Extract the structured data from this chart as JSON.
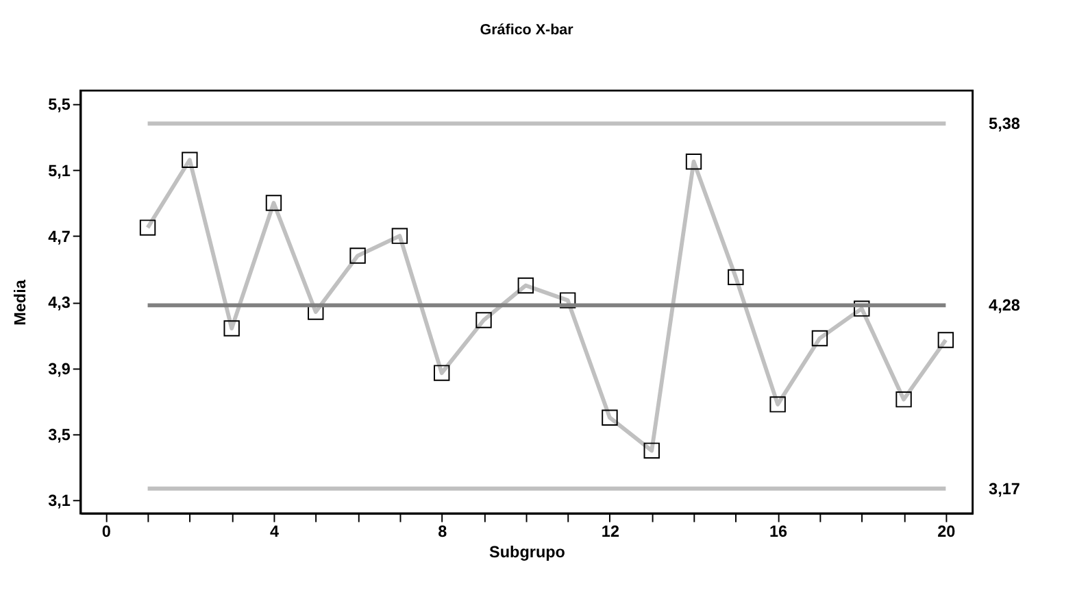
{
  "chart_data": {
    "type": "line",
    "title": "Gráfico X-bar",
    "xlabel": "Subgrupo",
    "ylabel": "Media",
    "x": [
      1,
      2,
      3,
      4,
      5,
      6,
      7,
      8,
      9,
      10,
      11,
      12,
      13,
      14,
      15,
      16,
      17,
      18,
      19,
      20
    ],
    "series": [
      {
        "color": "#c0c0c0",
        "values": [
          4.75,
          5.16,
          4.14,
          4.9,
          4.24,
          4.58,
          4.7,
          3.87,
          4.19,
          4.4,
          4.31,
          3.6,
          3.4,
          5.15,
          4.45,
          3.68,
          4.08,
          4.26,
          3.71,
          4.07
        ]
      }
    ],
    "marker": "square",
    "line_style": "solid",
    "grid": false,
    "xlim": [
      -0.6,
      20.64
    ],
    "ylim": [
      3.02,
      5.58
    ],
    "xticks": [
      0,
      {
        "value": 1,
        "label": null
      },
      {
        "value": 2,
        "label": null
      },
      {
        "value": 3,
        "label": null
      },
      4,
      {
        "value": 5,
        "label": null
      },
      {
        "value": 6,
        "label": null
      },
      {
        "value": 7,
        "label": null
      },
      8,
      {
        "value": 9,
        "label": null
      },
      {
        "value": 10,
        "label": null
      },
      {
        "value": 11,
        "label": null
      },
      12,
      {
        "value": 13,
        "label": null
      },
      {
        "value": 14,
        "label": null
      },
      {
        "value": 15,
        "label": null
      },
      16,
      {
        "value": 17,
        "label": null
      },
      {
        "value": 18,
        "label": null
      },
      {
        "value": 19,
        "label": null
      },
      20
    ],
    "yticks": [
      {
        "value": 3.1,
        "label": "3,1"
      },
      {
        "value": 3.5,
        "label": "3,5"
      },
      {
        "value": 3.9,
        "label": "3,9"
      },
      {
        "value": 4.3,
        "label": "4,3"
      },
      {
        "value": 4.7,
        "label": "4,7"
      },
      {
        "value": 5.1,
        "label": "5,1"
      },
      {
        "value": 5.5,
        "label": "5,5"
      }
    ],
    "ref_lines": [
      {
        "axis": "y",
        "value": 5.38,
        "label": "5,38",
        "color": "#c0c0c0"
      },
      {
        "axis": "y",
        "value": 4.28,
        "label": "4,28",
        "color": "#808080"
      },
      {
        "axis": "y",
        "value": 3.17,
        "label": "3,17",
        "color": "#c0c0c0"
      }
    ]
  }
}
